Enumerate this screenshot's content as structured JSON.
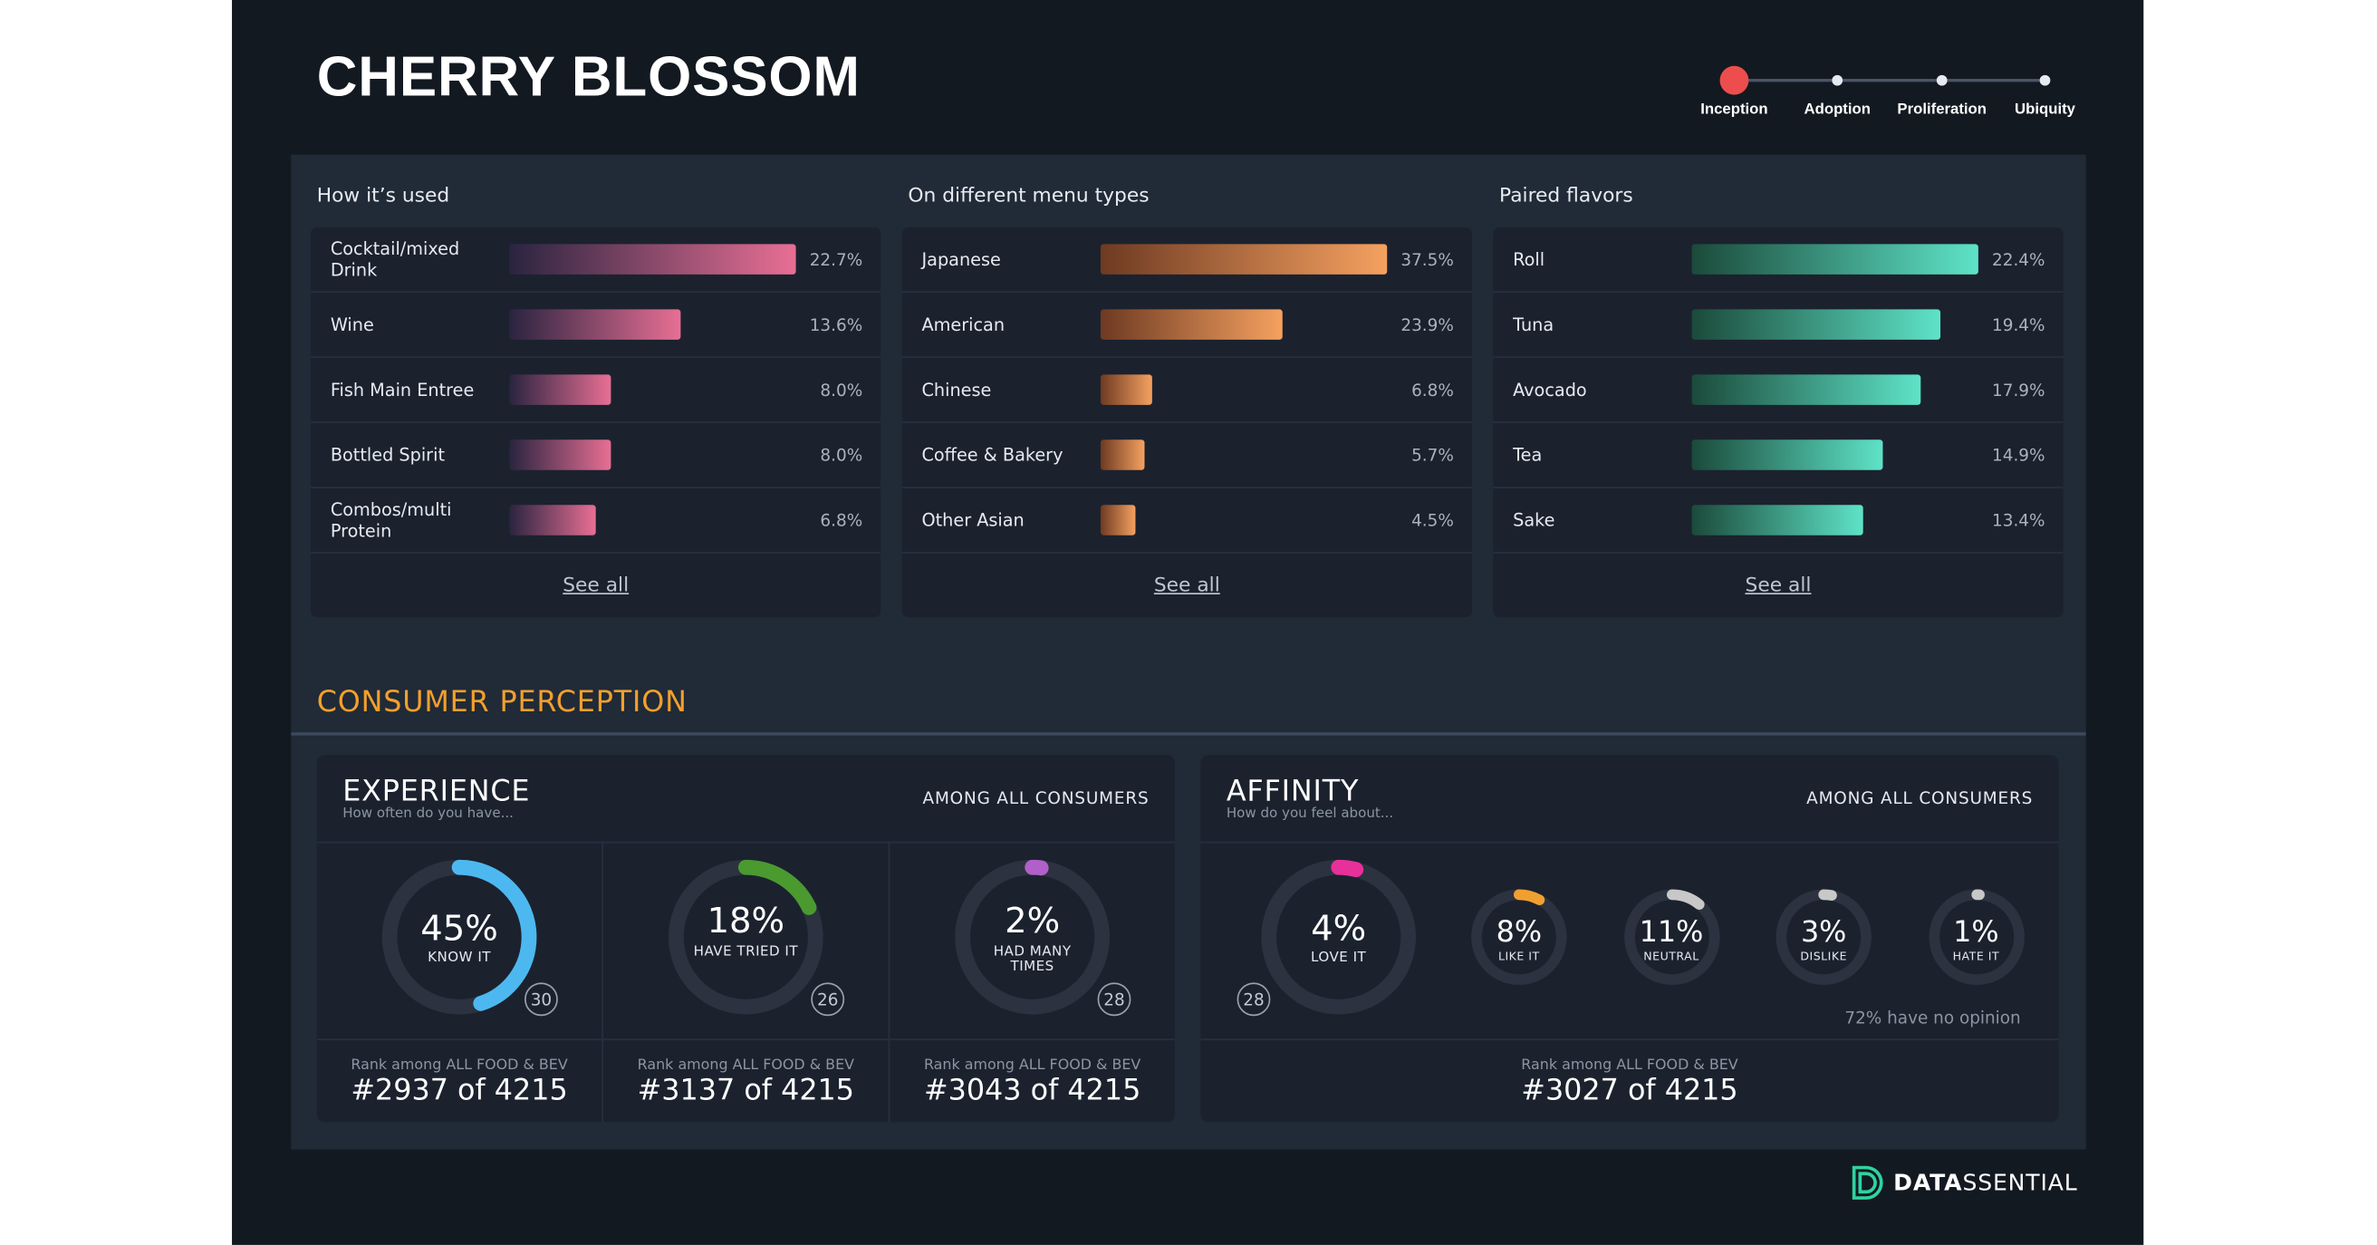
{
  "title": "CHERRY BLOSSOM",
  "stages": {
    "items": [
      "Inception",
      "Adoption",
      "Proliferation",
      "Ubiquity"
    ],
    "active": "Inception",
    "active_color": "#ee4d4d"
  },
  "sections": [
    {
      "title": "How it’s used",
      "bar_gradient": [
        "#2a2440",
        "#e86f94"
      ],
      "rows": [
        {
          "label": "Cocktail/mixed Drink",
          "value": 22.7,
          "display": "22.7%"
        },
        {
          "label": "Wine",
          "value": 13.6,
          "display": "13.6%"
        },
        {
          "label": "Fish Main Entree",
          "value": 8.0,
          "display": "8.0%"
        },
        {
          "label": "Bottled Spirit",
          "value": 8.0,
          "display": "8.0%"
        },
        {
          "label": "Combos/multi Protein",
          "value": 6.8,
          "display": "6.8%"
        }
      ],
      "see_all": "See all"
    },
    {
      "title": "On different menu types",
      "bar_gradient": [
        "#6e3a22",
        "#f5a160"
      ],
      "rows": [
        {
          "label": "Japanese",
          "value": 37.5,
          "display": "37.5%"
        },
        {
          "label": "American",
          "value": 23.9,
          "display": "23.9%"
        },
        {
          "label": "Chinese",
          "value": 6.8,
          "display": "6.8%"
        },
        {
          "label": "Coffee & Bakery",
          "value": 5.7,
          "display": "5.7%"
        },
        {
          "label": "Other Asian",
          "value": 4.5,
          "display": "4.5%"
        }
      ],
      "see_all": "See all"
    },
    {
      "title": "Paired flavors",
      "bar_gradient": [
        "#1b4a3a",
        "#5ee3c8"
      ],
      "rows": [
        {
          "label": "Roll",
          "value": 22.4,
          "display": "22.4%"
        },
        {
          "label": "Tuna",
          "value": 19.4,
          "display": "19.4%"
        },
        {
          "label": "Avocado",
          "value": 17.9,
          "display": "17.9%"
        },
        {
          "label": "Tea",
          "value": 14.9,
          "display": "14.9%"
        },
        {
          "label": "Sake",
          "value": 13.4,
          "display": "13.4%"
        }
      ],
      "see_all": "See all"
    }
  ],
  "consumer_perception": {
    "title": "CONSUMER PERCEPTION",
    "experience": {
      "title": "EXPERIENCE",
      "subtitle": "How often do you have...",
      "among": "AMONG ALL CONSUMERS",
      "metrics": [
        {
          "pct": 45,
          "pct_label": "45%",
          "label": "KNOW IT",
          "badge": "30",
          "color": "#4db8f0",
          "rank_label": "Rank among ALL FOOD & BEV",
          "rank": "#2937 of 4215"
        },
        {
          "pct": 18,
          "pct_label": "18%",
          "label": "HAVE TRIED IT",
          "badge": "26",
          "color": "#4a9a30",
          "rank_label": "Rank among ALL FOOD & BEV",
          "rank": "#3137 of 4215"
        },
        {
          "pct": 2,
          "pct_label": "2%",
          "label": "HAD MANY TIMES",
          "badge": "28",
          "color": "#b060c8",
          "rank_label": "Rank among ALL FOOD & BEV",
          "rank": "#3043 of 4215"
        }
      ]
    },
    "affinity": {
      "title": "AFFINITY",
      "subtitle": "How do you feel about...",
      "among": "AMONG ALL CONSUMERS",
      "main": {
        "pct": 4,
        "pct_label": "4%",
        "label": "LOVE IT",
        "badge": "28",
        "color": "#e8309a"
      },
      "others": [
        {
          "pct": 8,
          "pct_label": "8%",
          "label": "LIKE IT",
          "color": "#f0a030"
        },
        {
          "pct": 11,
          "pct_label": "11%",
          "label": "NEUTRAL",
          "color": "#c8c8c8"
        },
        {
          "pct": 3,
          "pct_label": "3%",
          "label": "DISLIKE",
          "color": "#c8c8c8"
        },
        {
          "pct": 1,
          "pct_label": "1%",
          "label": "HATE IT",
          "color": "#c8c8c8"
        }
      ],
      "no_opinion": "72% have no opinion",
      "rank_label": "Rank among ALL FOOD & BEV",
      "rank": "#3027 of 4215"
    }
  },
  "logo": {
    "bold": "DATA",
    "rest": "SSENTIAL",
    "color": "#2ed3a0"
  }
}
